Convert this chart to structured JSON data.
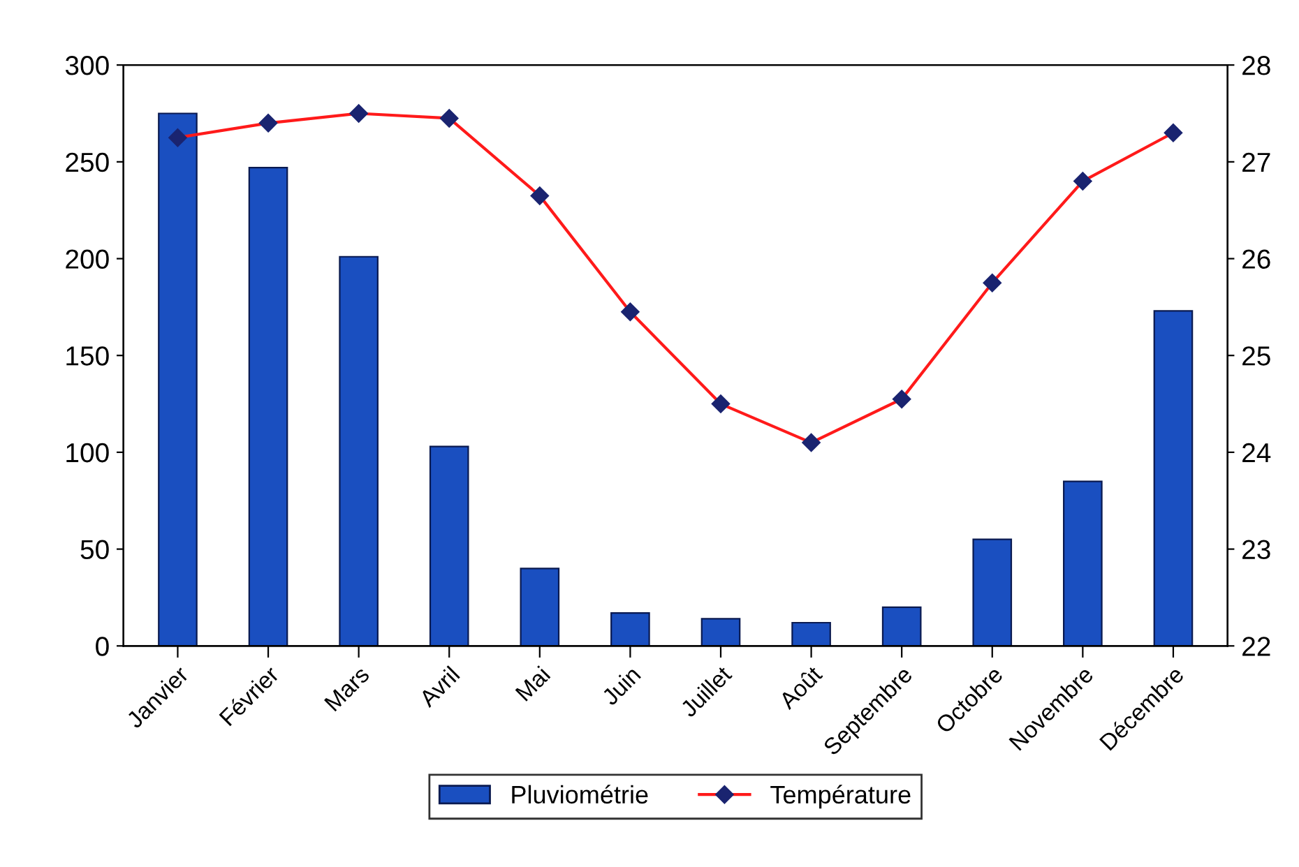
{
  "chart_data": {
    "type": "bar",
    "categories": [
      "Janvier",
      "Février",
      "Mars",
      "Avril",
      "Mai",
      "Juin",
      "Juillet",
      "Août",
      "Septembre",
      "Octobre",
      "Novembre",
      "Décembre"
    ],
    "series": [
      {
        "name": "Pluviométrie",
        "color": "#1a4fc0",
        "values": [
          275,
          247,
          201,
          103,
          40,
          17,
          14,
          12,
          20,
          55,
          85,
          173
        ]
      },
      {
        "name": "Température",
        "type": "line",
        "axis": "y2",
        "color": "#ff1a1a",
        "marker": "diamond",
        "values": [
          27.25,
          27.4,
          27.5,
          27.45,
          26.65,
          25.45,
          24.5,
          24.1,
          24.55,
          25.75,
          26.8,
          27.3
        ]
      }
    ],
    "ylim": [
      0,
      300
    ],
    "yticks": [
      0,
      50,
      100,
      150,
      200,
      250,
      300
    ],
    "y2lim": [
      22,
      28
    ],
    "y2ticks": [
      22,
      23,
      24,
      25,
      26,
      27,
      28
    ],
    "grid": false,
    "legend": "bottom"
  }
}
